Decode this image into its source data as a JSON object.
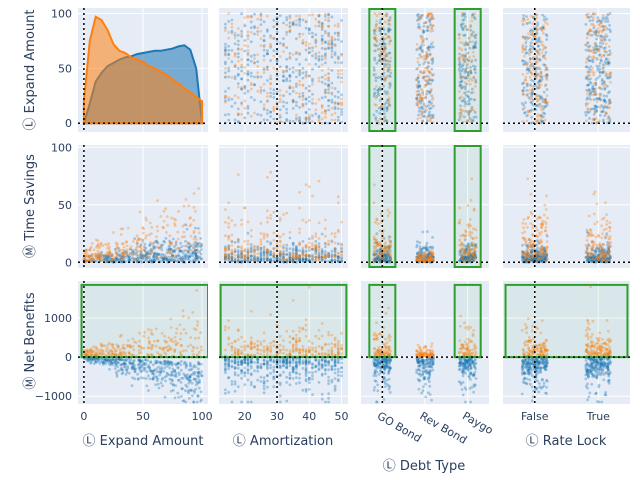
{
  "colors": {
    "series_a": "#1f77b4",
    "series_b": "#ff7f0e",
    "panel_bg": "#e5ecf6",
    "gridline": "#ffffff",
    "highlight_box": "#2ca02c",
    "reference_line": "#000000"
  },
  "chart_data": {
    "type": "scatter",
    "layout": "scatterplot-matrix",
    "title": "",
    "grid": true,
    "legend": "none",
    "columns": [
      {
        "key": "expand",
        "label": "Ⓛ Expand Amount",
        "kind": "numeric",
        "range": [
          -5,
          105
        ],
        "ticks": [
          "0",
          "50",
          "100"
        ],
        "tick_values": [
          0,
          50,
          100
        ]
      },
      {
        "key": "amort",
        "label": "Ⓛ Amortization",
        "kind": "numeric",
        "range": [
          12,
          52
        ],
        "ticks": [
          "20",
          "30",
          "40",
          "50"
        ],
        "tick_values": [
          20,
          30,
          40,
          50
        ]
      },
      {
        "key": "debt",
        "label": "Ⓛ Debt Type",
        "kind": "categorical",
        "categories": [
          "GO Bond",
          "Rev Bond",
          "Paygo"
        ]
      },
      {
        "key": "rate",
        "label": "Ⓛ Rate Lock",
        "kind": "categorical",
        "categories": [
          "False",
          "True"
        ]
      }
    ],
    "rows": [
      {
        "key": "expand",
        "label": "Ⓛ Expand Amount",
        "range": [
          -8,
          105
        ],
        "ticks": [
          "0",
          "50",
          "100"
        ],
        "tick_values": [
          0,
          50,
          100
        ]
      },
      {
        "key": "savings",
        "label": "Ⓜ Time Savings",
        "range": [
          -5,
          102
        ],
        "ticks": [
          "0",
          "50",
          "100"
        ],
        "tick_values": [
          0,
          50,
          100
        ]
      },
      {
        "key": "net",
        "label": "Ⓜ Net Benefits",
        "range": [
          -1200,
          1950
        ],
        "ticks": [
          "−1000",
          "0",
          "1000"
        ],
        "tick_values": [
          -1000,
          0,
          1000
        ]
      }
    ],
    "density_diagonal": {
      "row": "expand",
      "x": [
        0,
        5,
        10,
        15,
        20,
        25,
        30,
        35,
        40,
        45,
        50,
        55,
        60,
        65,
        70,
        75,
        80,
        85,
        90,
        95,
        100
      ],
      "series": [
        {
          "color": "series_a",
          "values": [
            0,
            18,
            38,
            46,
            52,
            55,
            58,
            60,
            61,
            63,
            64,
            65,
            66,
            66,
            67,
            68,
            70,
            71,
            67,
            50,
            0
          ]
        },
        {
          "color": "series_b",
          "values": [
            20,
            75,
            97,
            94,
            85,
            72,
            66,
            64,
            60,
            58,
            56,
            52,
            50,
            47,
            44,
            40,
            36,
            32,
            28,
            24,
            20
          ]
        }
      ]
    },
    "reference_lines": [
      {
        "axis": "x",
        "column": "expand",
        "value": 0
      },
      {
        "axis": "x",
        "column": "amort",
        "value": 30
      },
      {
        "axis": "x",
        "column": "debt",
        "value": "GO Bond"
      },
      {
        "axis": "x",
        "column": "rate",
        "value": "False"
      },
      {
        "axis": "y",
        "row": "expand",
        "value": 0
      },
      {
        "axis": "y",
        "row": "savings",
        "value": 0
      },
      {
        "axis": "y",
        "row": "net",
        "value": 0
      }
    ],
    "highlight_regions": [
      {
        "row": "expand",
        "column": "debt",
        "categories": [
          "GO Bond",
          "Paygo"
        ],
        "y": [
          -8,
          105
        ]
      },
      {
        "row": "savings",
        "column": "debt",
        "categories": [
          "GO Bond",
          "Paygo"
        ],
        "y": [
          -5,
          102
        ]
      },
      {
        "row": "net",
        "column": "expand",
        "x": [
          -2,
          105
        ],
        "y": [
          0,
          1850
        ]
      },
      {
        "row": "net",
        "column": "amort",
        "x": [
          12.5,
          51.5
        ],
        "y": [
          0,
          1850
        ]
      },
      {
        "row": "net",
        "column": "debt",
        "categories": [
          "GO Bond",
          "Paygo"
        ],
        "y": [
          0,
          1850
        ]
      },
      {
        "row": "net",
        "column": "rate",
        "x_fraction": [
          0.02,
          0.98
        ],
        "y": [
          0,
          1850
        ]
      }
    ],
    "series": [
      {
        "color": "series_a",
        "description_source": "blue points: lower Time Savings, Net Benefits trending negative as Expand Amount grows"
      },
      {
        "color": "series_b",
        "description_source": "orange points: higher Time Savings and positive Net Benefits"
      }
    ]
  }
}
